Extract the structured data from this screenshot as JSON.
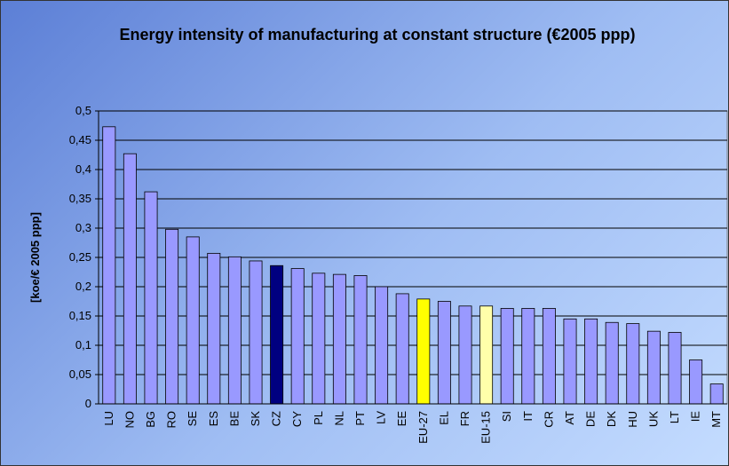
{
  "chart_data": {
    "type": "bar",
    "title": "Energy intensity of manufacturing at constant structure (€2005 ppp)",
    "ylabel": "[koe/€ 2005 ppp]",
    "categories": [
      "LU",
      "NO",
      "BG",
      "RO",
      "SE",
      "ES",
      "BE",
      "SK",
      "CZ",
      "CY",
      "PL",
      "NL",
      "PT",
      "LV",
      "EE",
      "EU-27",
      "EL",
      "FR",
      "EU-15",
      "SI",
      "IT",
      "CR",
      "AT",
      "DE",
      "DK",
      "HU",
      "UK",
      "LT",
      "IE",
      "MT"
    ],
    "values": [
      0.473,
      0.427,
      0.362,
      0.298,
      0.285,
      0.257,
      0.251,
      0.244,
      0.236,
      0.231,
      0.223,
      0.221,
      0.219,
      0.2,
      0.188,
      0.179,
      0.175,
      0.167,
      0.167,
      0.163,
      0.163,
      0.163,
      0.145,
      0.145,
      0.139,
      0.137,
      0.124,
      0.122,
      0.075,
      0.034
    ],
    "colors": [
      "#9999ff",
      "#9999ff",
      "#9999ff",
      "#9999ff",
      "#9999ff",
      "#9999ff",
      "#9999ff",
      "#9999ff",
      "#000080",
      "#9999ff",
      "#9999ff",
      "#9999ff",
      "#9999ff",
      "#9999ff",
      "#9999ff",
      "#ffff00",
      "#9999ff",
      "#9999ff",
      "#ffffaa",
      "#9999ff",
      "#9999ff",
      "#9999ff",
      "#9999ff",
      "#9999ff",
      "#9999ff",
      "#9999ff",
      "#9999ff",
      "#9999ff",
      "#9999ff",
      "#9999ff"
    ],
    "ylim": [
      0,
      0.5
    ],
    "yticks": [
      0,
      {
        "value": 0.05,
        "label": "0,05"
      },
      {
        "value": 0.1,
        "label": "0,1"
      },
      {
        "value": 0.15,
        "label": "0,15"
      },
      {
        "value": 0.2,
        "label": "0,2"
      },
      {
        "value": 0.25,
        "label": "0,25"
      },
      {
        "value": 0.3,
        "label": "0,3"
      },
      {
        "value": 0.35,
        "label": "0,35"
      },
      {
        "value": 0.4,
        "label": "0,4"
      },
      {
        "value": 0.45,
        "label": "0,45"
      },
      {
        "value": 0.5,
        "label": "0,5"
      }
    ],
    "grid": true
  }
}
